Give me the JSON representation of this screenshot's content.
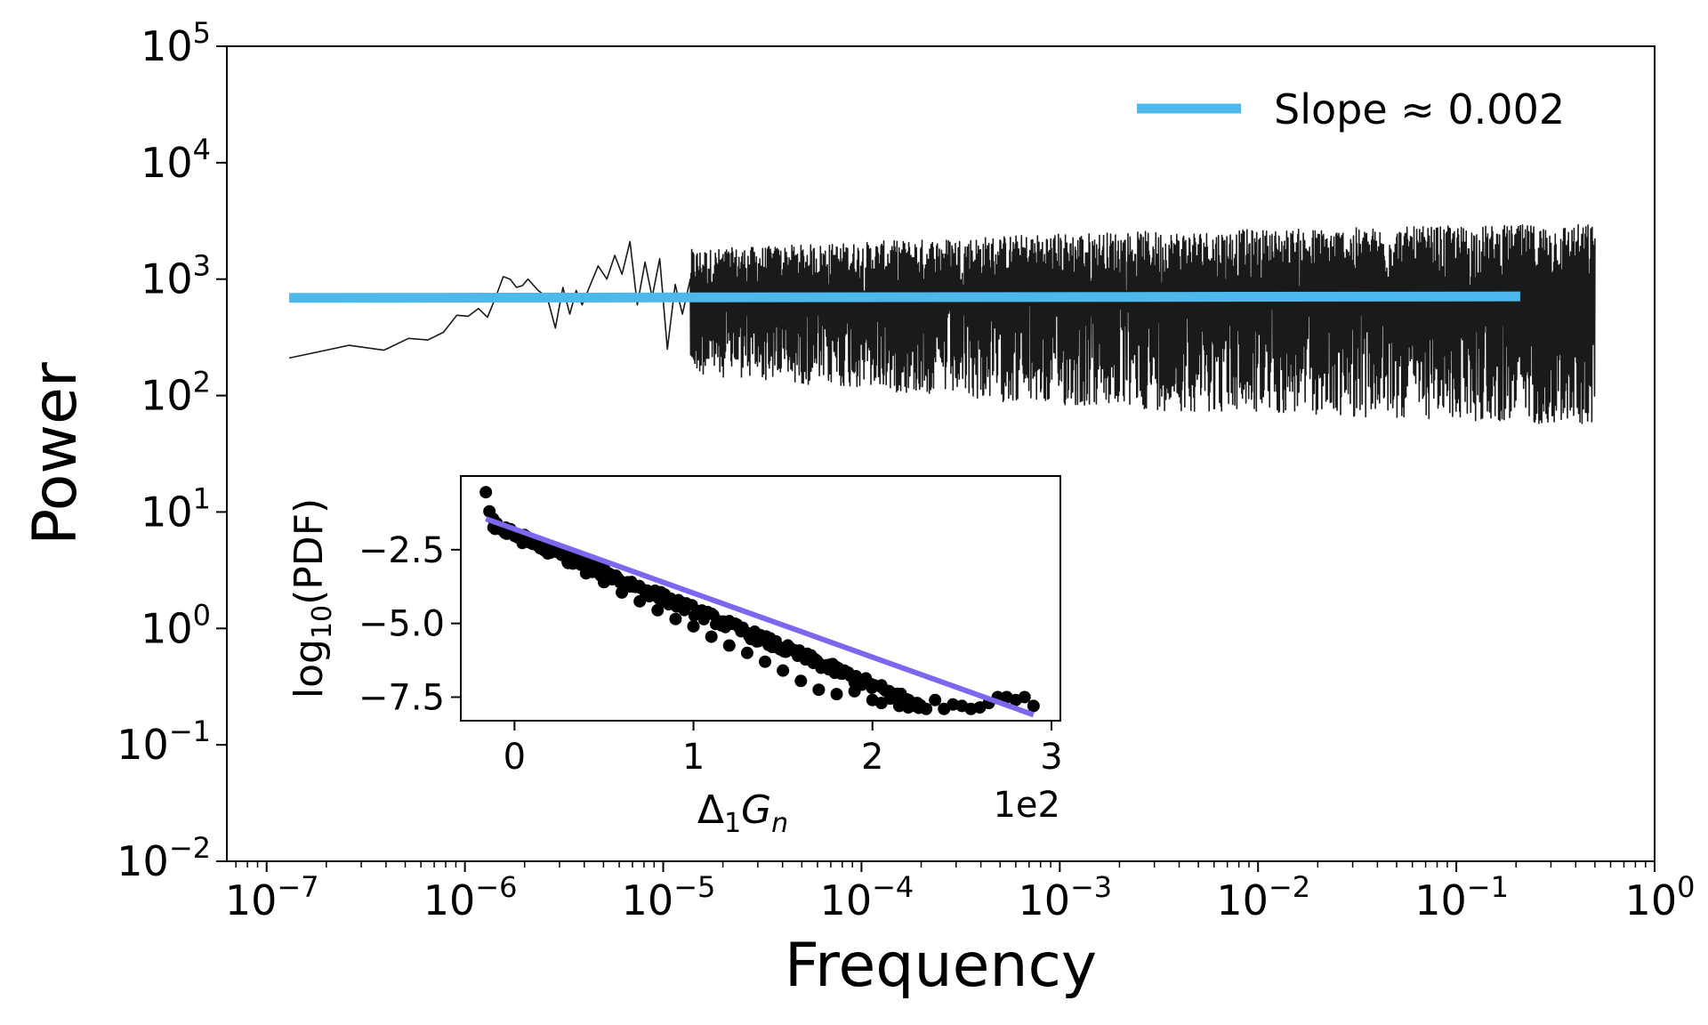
{
  "chart_data": [
    {
      "type": "line",
      "title": "",
      "xlabel": "Frequency",
      "ylabel": "Power",
      "xscale": "log",
      "yscale": "log",
      "xlim": [
        6.3e-08,
        1.0
      ],
      "ylim": [
        0.01,
        100000
      ],
      "x_ticks": [
        {
          "base": "10",
          "exp": "−7"
        },
        {
          "base": "10",
          "exp": "−6"
        },
        {
          "base": "10",
          "exp": "−5"
        },
        {
          "base": "10",
          "exp": "−4"
        },
        {
          "base": "10",
          "exp": "−3"
        },
        {
          "base": "10",
          "exp": "−2"
        },
        {
          "base": "10",
          "exp": "−1"
        },
        {
          "base": "10",
          "exp": "0"
        }
      ],
      "y_ticks": [
        {
          "base": "10",
          "exp": "−2"
        },
        {
          "base": "10",
          "exp": "−1"
        },
        {
          "base": "10",
          "exp": "0"
        },
        {
          "base": "10",
          "exp": "1"
        },
        {
          "base": "10",
          "exp": "2"
        },
        {
          "base": "10",
          "exp": "3"
        },
        {
          "base": "10",
          "exp": "4"
        },
        {
          "base": "10",
          "exp": "5"
        }
      ],
      "grid": false,
      "legend": {
        "position": "top-right",
        "entries": [
          {
            "label": "Slope ≈ 0.002",
            "color": "#4db8ec"
          }
        ]
      },
      "series": [
        {
          "kind": "spectrum",
          "color": "#1a1a1a",
          "x": [
            1.3e-07,
            2.6e-07,
            3.9e-07,
            5.2e-07,
            6.5e-07,
            7.8e-07,
            9.1e-07,
            1.04e-06,
            1.17e-06,
            1.3e-06,
            1.43e-06,
            1.56e-06,
            1.69e-06,
            1.82e-06,
            1.95e-06,
            2.08e-06,
            2.34e-06,
            2.6e-06,
            2.86e-06,
            3.12e-06,
            3.38e-06,
            3.64e-06,
            3.9e-06,
            4.3e-06,
            4.7e-06,
            5.2e-06,
            5.7e-06,
            6.2e-06,
            6.8e-06,
            7.4e-06,
            8.1e-06,
            8.8e-06,
            9.6e-06,
            1.05e-05,
            1.15e-05,
            1.25e-05,
            1.37e-05
          ],
          "y": [
            210,
            270,
            245,
            310,
            300,
            350,
            490,
            480,
            560,
            470,
            700,
            1050,
            1000,
            850,
            880,
            1000,
            800,
            700,
            380,
            850,
            500,
            800,
            600,
            900,
            1300,
            1000,
            1600,
            1100,
            2100,
            600,
            1400,
            700,
            1500,
            250,
            900,
            500,
            1000
          ],
          "envelope_upper": [
            1800,
            2500,
            3000
          ],
          "envelope_lower": [
            150,
            80,
            55
          ],
          "envelope_x": [
            1.5e-05,
            0.001,
            0.5
          ]
        },
        {
          "kind": "fit",
          "name": "Slope ≈ 0.002",
          "color": "#4db8ec",
          "x": [
            1.3e-07,
            0.21
          ],
          "y": [
            690,
            710
          ]
        }
      ]
    },
    {
      "type": "scatter",
      "title": "",
      "xlabel": {
        "base": "Δ",
        "sub1": "1",
        "mid": "G",
        "sub2": "n"
      },
      "ylabel": {
        "pre": "log",
        "sub": "10",
        "post": "(PDF)"
      },
      "x_offset_text": "1e2",
      "xlim": [
        -0.3,
        3.05
      ],
      "ylim": [
        -8.3,
        0.0
      ],
      "x_ticks": [
        "0",
        "1",
        "2",
        "3"
      ],
      "y_ticks": [
        "−2.5",
        "−5.0",
        "−7.5"
      ],
      "series": [
        {
          "kind": "points",
          "color": "#000000",
          "x": [
            -0.16,
            -0.14,
            -0.12,
            -0.1,
            -0.05,
            0.0,
            0.1,
            0.2,
            0.3,
            0.4,
            0.5,
            0.6,
            0.7,
            0.8,
            0.9,
            1.0,
            1.1,
            1.2,
            1.3,
            1.4,
            1.5,
            1.6,
            1.7,
            1.8,
            1.9,
            2.0,
            2.05,
            2.1,
            2.15,
            2.2,
            2.25,
            2.3,
            2.35,
            2.4,
            2.45,
            2.5,
            2.55,
            2.6,
            2.65,
            2.7,
            2.75,
            2.8,
            2.85,
            2.9
          ],
          "y": [
            -0.55,
            -1.2,
            -1.45,
            -1.6,
            -1.75,
            -1.95,
            -2.3,
            -2.6,
            -2.95,
            -3.3,
            -3.6,
            -3.95,
            -4.25,
            -4.55,
            -4.85,
            -5.1,
            -5.45,
            -5.75,
            -6.0,
            -6.3,
            -6.6,
            -6.95,
            -7.25,
            -7.4,
            -7.3,
            -7.6,
            -7.7,
            -7.55,
            -7.8,
            -7.85,
            -7.7,
            -7.9,
            -7.6,
            -7.9,
            -7.75,
            -7.8,
            -7.9,
            -7.85,
            -7.7,
            -7.5,
            -7.5,
            -7.6,
            -7.5,
            -7.8
          ]
        },
        {
          "kind": "fit",
          "color": "#7b68ee",
          "x": [
            -0.16,
            2.9
          ],
          "y": [
            -1.45,
            -8.1
          ]
        }
      ]
    }
  ]
}
